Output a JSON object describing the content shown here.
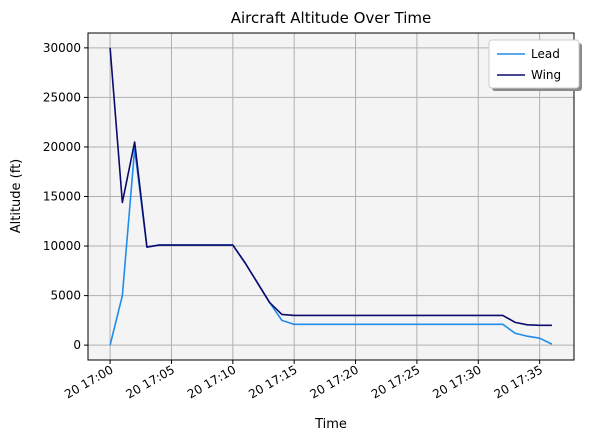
{
  "chart_data": {
    "type": "line",
    "title": "Aircraft Altitude Over Time",
    "xlabel": "Time",
    "ylabel": "Altitude (ft)",
    "x_start": "20 17:00",
    "x": [
      0,
      1,
      2,
      3,
      4,
      5,
      6,
      7,
      8,
      9,
      10,
      11,
      12,
      13,
      14,
      15,
      16,
      17,
      18,
      19,
      20,
      21,
      22,
      23,
      24,
      25,
      26,
      27,
      28,
      29,
      30,
      31,
      32,
      33,
      34,
      35,
      36
    ],
    "x_ticks": [
      {
        "value": 0,
        "label": "20 17:00"
      },
      {
        "value": 5,
        "label": "20 17:05"
      },
      {
        "value": 10,
        "label": "20 17:10"
      },
      {
        "value": 15,
        "label": "20 17:15"
      },
      {
        "value": 20,
        "label": "20 17:20"
      },
      {
        "value": 25,
        "label": "20 17:25"
      },
      {
        "value": 30,
        "label": "20 17:30"
      },
      {
        "value": 35,
        "label": "20 17:35"
      }
    ],
    "xlim": [
      -1.8,
      37.8
    ],
    "ylim": [
      -1500,
      31500
    ],
    "y_ticks": [
      0,
      5000,
      10000,
      15000,
      20000,
      25000,
      30000
    ],
    "grid": true,
    "legend_position": "top-right",
    "background": "#f4f4f4",
    "series": [
      {
        "name": "Lead",
        "color": "#1f8ceb",
        "values": [
          0,
          5000,
          19800,
          9900,
          10100,
          10100,
          10100,
          10100,
          10100,
          10100,
          10100,
          8300,
          6300,
          4300,
          2500,
          2100,
          2100,
          2100,
          2100,
          2100,
          2100,
          2100,
          2100,
          2100,
          2100,
          2100,
          2100,
          2100,
          2100,
          2100,
          2100,
          2100,
          2100,
          1200,
          900,
          700,
          100
        ]
      },
      {
        "name": "Wing",
        "color": "#0b0b6e",
        "values": [
          30000,
          14400,
          20500,
          9900,
          10100,
          10100,
          10100,
          10100,
          10100,
          10100,
          10100,
          8300,
          6300,
          4300,
          3100,
          3000,
          3000,
          3000,
          3000,
          3000,
          3000,
          3000,
          3000,
          3000,
          3000,
          3000,
          3000,
          3000,
          3000,
          3000,
          3000,
          3000,
          3000,
          2300,
          2050,
          2000,
          2000
        ]
      }
    ]
  }
}
